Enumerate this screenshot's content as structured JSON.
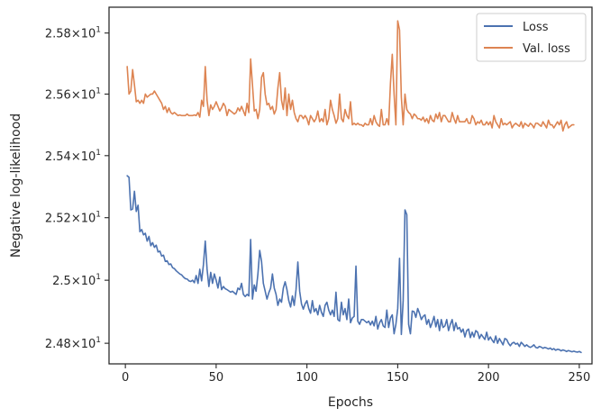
{
  "chart_data": {
    "type": "line",
    "xlabel": "Epochs",
    "ylabel": "Negative log-likelihood",
    "xlim": [
      -9,
      257
    ],
    "ylim": [
      24.735,
      25.885
    ],
    "y_scale": "log",
    "grid": false,
    "legend_position": "top-right",
    "x_ticks": [
      0,
      50,
      100,
      150,
      200,
      250
    ],
    "x_tick_labels": [
      "0",
      "50",
      "100",
      "150",
      "200",
      "250"
    ],
    "y_ticks": [
      24.8,
      25.0,
      25.2,
      25.4,
      25.6,
      25.8
    ],
    "y_tick_labels": [
      {
        "base": "2.48",
        "times": "×",
        "ten": "10",
        "exp": "1"
      },
      {
        "base": "2.5",
        "times": "×",
        "ten": "10",
        "exp": "1"
      },
      {
        "base": "2.52",
        "times": "×",
        "ten": "10",
        "exp": "1"
      },
      {
        "base": "2.54",
        "times": "×",
        "ten": "10",
        "exp": "1"
      },
      {
        "base": "2.56",
        "times": "×",
        "ten": "10",
        "exp": "1"
      },
      {
        "base": "2.58",
        "times": "×",
        "ten": "10",
        "exp": "1"
      }
    ],
    "x_start": 1,
    "series": [
      {
        "name": "Loss",
        "color": "#4c72b0",
        "values": [
          25.335,
          25.33,
          25.225,
          25.228,
          25.285,
          25.22,
          25.24,
          25.155,
          25.162,
          25.145,
          25.15,
          25.125,
          25.14,
          25.11,
          25.12,
          25.105,
          25.112,
          25.09,
          25.093,
          25.077,
          25.08,
          25.06,
          25.062,
          25.05,
          25.052,
          25.04,
          25.037,
          25.03,
          25.025,
          25.02,
          25.017,
          25.01,
          25.005,
          25.004,
          24.998,
          24.996,
          25.0,
          24.992,
          25.015,
          24.99,
          25.035,
          24.998,
          25.05,
          25.125,
          25.035,
          24.98,
          25.025,
          24.99,
          25.02,
          25.0,
          24.975,
          25.01,
          24.97,
          24.98,
          24.973,
          24.97,
          24.966,
          24.962,
          24.965,
          24.96,
          24.955,
          24.975,
          24.97,
          24.99,
          24.955,
          24.948,
          24.955,
          24.95,
          25.13,
          24.94,
          24.985,
          24.965,
          25.02,
          25.095,
          25.06,
          24.99,
          24.965,
          24.94,
          24.96,
          24.975,
          25.02,
          24.975,
          24.955,
          24.92,
          24.94,
          24.93,
          24.975,
          24.995,
          24.97,
          24.935,
          24.915,
          24.95,
          24.92,
          24.97,
          25.058,
          24.965,
          24.925,
          24.908,
          24.925,
          24.935,
          24.91,
          24.895,
          24.935,
          24.9,
          24.91,
          24.89,
          24.92,
          24.898,
          24.885,
          24.92,
          24.93,
          24.905,
          24.89,
          24.905,
          24.885,
          24.962,
          24.875,
          24.87,
          24.93,
          24.89,
          24.91,
          24.875,
          24.94,
          24.865,
          24.88,
          24.885,
          25.045,
          24.87,
          24.86,
          24.875,
          24.875,
          24.87,
          24.865,
          24.87,
          24.858,
          24.87,
          24.855,
          24.885,
          24.845,
          24.865,
          24.875,
          24.855,
          24.85,
          24.905,
          24.85,
          24.88,
          24.89,
          24.83,
          24.86,
          24.91,
          25.07,
          24.828,
          24.935,
          25.225,
          25.21,
          24.86,
          24.83,
          24.902,
          24.9,
          24.882,
          24.91,
          24.895,
          24.875,
          24.885,
          24.89,
          24.86,
          24.875,
          24.85,
          24.865,
          24.885,
          24.852,
          24.875,
          24.84,
          24.875,
          24.85,
          24.855,
          24.875,
          24.84,
          24.86,
          24.875,
          24.84,
          24.865,
          24.845,
          24.85,
          24.835,
          24.845,
          24.82,
          24.84,
          24.845,
          24.818,
          24.835,
          24.82,
          24.84,
          24.835,
          24.815,
          24.828,
          24.82,
          24.812,
          24.835,
          24.81,
          24.82,
          24.81,
          24.802,
          24.823,
          24.8,
          24.815,
          24.805,
          24.795,
          24.815,
          24.812,
          24.8,
          24.792,
          24.8,
          24.803,
          24.797,
          24.8,
          24.79,
          24.803,
          24.797,
          24.79,
          24.795,
          24.79,
          24.787,
          24.79,
          24.795,
          24.787,
          24.785,
          24.79,
          24.788,
          24.784,
          24.787,
          24.785,
          24.782,
          24.785,
          24.78,
          24.783,
          24.778,
          24.781,
          24.78,
          24.776,
          24.779,
          24.777,
          24.774,
          24.777,
          24.775,
          24.773,
          24.775,
          24.773,
          24.772,
          24.774,
          24.771
        ]
      },
      {
        "name": "Val. loss",
        "color": "#dd8452",
        "values": [
          25.69,
          25.6,
          25.61,
          25.68,
          25.63,
          25.575,
          25.58,
          25.57,
          25.58,
          25.57,
          25.6,
          25.59,
          25.595,
          25.6,
          25.6,
          25.61,
          25.6,
          25.59,
          25.58,
          25.57,
          25.55,
          25.56,
          25.54,
          25.555,
          25.54,
          25.535,
          25.54,
          25.535,
          25.53,
          25.532,
          25.53,
          25.53,
          25.53,
          25.535,
          25.53,
          25.53,
          25.53,
          25.532,
          25.53,
          25.54,
          25.525,
          25.58,
          25.56,
          25.69,
          25.58,
          25.53,
          25.565,
          25.55,
          25.56,
          25.575,
          25.56,
          25.545,
          25.555,
          25.57,
          25.56,
          25.53,
          25.55,
          25.545,
          25.54,
          25.535,
          25.54,
          25.555,
          25.545,
          25.56,
          25.545,
          25.53,
          25.57,
          25.54,
          25.715,
          25.63,
          25.545,
          25.55,
          25.52,
          25.55,
          25.655,
          25.67,
          25.6,
          25.565,
          25.57,
          25.55,
          25.56,
          25.535,
          25.55,
          25.62,
          25.67,
          25.58,
          25.55,
          25.62,
          25.53,
          25.6,
          25.55,
          25.58,
          25.54,
          25.52,
          25.51,
          25.53,
          25.53,
          25.52,
          25.53,
          25.52,
          25.5,
          25.53,
          25.52,
          25.51,
          25.52,
          25.545,
          25.51,
          25.52,
          25.51,
          25.55,
          25.5,
          25.52,
          25.58,
          25.55,
          25.53,
          25.505,
          25.52,
          25.6,
          25.52,
          25.51,
          25.55,
          25.53,
          25.52,
          25.575,
          25.5,
          25.505,
          25.5,
          25.505,
          25.5,
          25.5,
          25.495,
          25.505,
          25.5,
          25.5,
          25.52,
          25.5,
          25.53,
          25.51,
          25.5,
          25.495,
          25.55,
          25.5,
          25.5,
          25.52,
          25.5,
          25.635,
          25.73,
          25.6,
          25.5,
          25.84,
          25.81,
          25.59,
          25.5,
          25.6,
          25.55,
          25.54,
          25.535,
          25.52,
          25.535,
          25.53,
          25.52,
          25.52,
          25.515,
          25.525,
          25.51,
          25.52,
          25.505,
          25.53,
          25.515,
          25.51,
          25.535,
          25.52,
          25.54,
          25.51,
          25.53,
          25.53,
          25.52,
          25.51,
          25.51,
          25.54,
          25.52,
          25.505,
          25.53,
          25.51,
          25.51,
          25.51,
          25.51,
          25.52,
          25.505,
          25.505,
          25.53,
          25.52,
          25.5,
          25.51,
          25.505,
          25.515,
          25.5,
          25.5,
          25.51,
          25.5,
          25.51,
          25.49,
          25.53,
          25.51,
          25.5,
          25.49,
          25.52,
          25.5,
          25.505,
          25.5,
          25.505,
          25.51,
          25.49,
          25.5,
          25.505,
          25.5,
          25.495,
          25.51,
          25.49,
          25.505,
          25.5,
          25.495,
          25.505,
          25.5,
          25.49,
          25.505,
          25.505,
          25.5,
          25.495,
          25.51,
          25.5,
          25.49,
          25.515,
          25.5,
          25.5,
          25.49,
          25.5,
          25.51,
          25.5,
          25.515,
          25.48,
          25.5,
          25.51,
          25.49,
          25.495,
          25.5,
          25.5
        ]
      }
    ]
  }
}
